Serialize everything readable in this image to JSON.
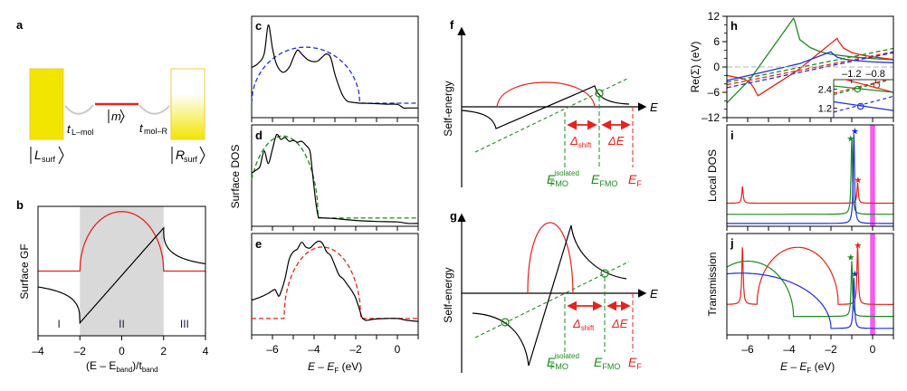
{
  "figure": {
    "panel_labels": [
      "a",
      "b",
      "c",
      "d",
      "e",
      "f",
      "g",
      "h",
      "i",
      "j"
    ]
  },
  "colors": {
    "black": "#000000",
    "red": "#e8221c",
    "blue": "#1f2fe0",
    "green": "#1e8a1e",
    "magenta": "#f25cf0",
    "yellow": "#f2e500",
    "gray_band": "#d9d9d9"
  },
  "panel_a": {
    "label": "a",
    "left_state": "|L_surf⟩",
    "left_state_main": "L",
    "left_state_sub": "surf",
    "right_state_main": "R",
    "right_state_sub": "surf",
    "mol_state": "m",
    "hop_left_main": "t",
    "hop_left_sub": "L–mol",
    "hop_right_main": "t",
    "hop_right_sub": "mol–R"
  },
  "chart_data": [
    {
      "id": "b",
      "type": "line",
      "title": "b",
      "ylabel": "Surface GF",
      "xlabel_main": "(E – E",
      "xlabel_sub1": "band",
      "xlabel_mid": ")/t",
      "xlabel_sub2": "band",
      "xlim": [
        -4,
        4
      ],
      "ylim": [
        -1.5,
        1.5
      ],
      "xticks": [
        "-4",
        "-2",
        "0",
        "2",
        "4"
      ],
      "xtick_values": [
        -4,
        -2,
        0,
        2,
        4
      ],
      "shaded_region": [
        -2,
        2
      ],
      "region_labels": [
        {
          "x": -3,
          "text": "I"
        },
        {
          "x": 0,
          "text": "II"
        },
        {
          "x": 3,
          "text": "III"
        }
      ],
      "series": [
        {
          "name": "Im (red)",
          "color": "red",
          "kind": "semicircle",
          "description": "-Im g = sqrt(4-x^2)/2 inside band, 0 outside"
        },
        {
          "name": "Re (black)",
          "color": "black",
          "kind": "re-surface-gf",
          "description": "x/2 inside band; (x ∓ sqrt(x^2-4))/2 outside"
        }
      ]
    },
    {
      "id": "c",
      "type": "line",
      "title": "c",
      "xlim": [
        -7,
        1
      ],
      "xtick_values": [
        -6,
        -4,
        -2,
        0
      ],
      "series": [
        {
          "name": "DFT surface DOS",
          "color": "black",
          "style": "solid",
          "x": [
            -7,
            -6.7,
            -6.4,
            -6.2,
            -6.0,
            -5.8,
            -5.5,
            -5.2,
            -5.0,
            -4.8,
            -4.6,
            -4.3,
            -4.0,
            -3.8,
            -3.6,
            -3.4,
            -3.2,
            -3.0,
            -2.8,
            -2.6,
            -2.4,
            -2.2,
            -2.0,
            -1.8,
            -1.6,
            -1.4,
            -1.0,
            -0.5,
            0.0,
            0.3,
            0.5,
            1.0
          ],
          "y": [
            0.52,
            0.56,
            0.66,
            0.96,
            0.72,
            0.55,
            0.47,
            0.52,
            0.62,
            0.7,
            0.66,
            0.6,
            0.58,
            0.59,
            0.63,
            0.66,
            0.62,
            0.45,
            0.32,
            0.22,
            0.17,
            0.16,
            0.155,
            0.15,
            0.15,
            0.148,
            0.145,
            0.14,
            0.138,
            0.1,
            0.1,
            0.1
          ]
        },
        {
          "name": "model semicircle",
          "color": "blue",
          "style": "dashed",
          "center": -4.4,
          "halfwidth": 2.6,
          "height": 0.58,
          "baseline": 0.15
        }
      ]
    },
    {
      "id": "d",
      "type": "line",
      "title": "d",
      "ylabel": "Surface DOS",
      "xlim": [
        -7,
        1
      ],
      "xtick_values": [
        -6,
        -4,
        -2,
        0
      ],
      "series": [
        {
          "name": "DFT surface DOS",
          "color": "black",
          "style": "solid",
          "x": [
            -7,
            -6.8,
            -6.6,
            -6.4,
            -6.2,
            -6.0,
            -5.8,
            -5.6,
            -5.4,
            -5.2,
            -5.0,
            -4.8,
            -4.6,
            -4.4,
            -4.2,
            -4.1,
            -4.0,
            -3.9,
            -3.8,
            -3.7,
            -3.5,
            -3.0,
            -2.0,
            -1.0,
            0.0,
            0.5,
            1.0
          ],
          "y": [
            0.55,
            0.58,
            0.62,
            0.78,
            0.65,
            0.8,
            0.95,
            0.9,
            0.92,
            0.88,
            0.89,
            0.87,
            0.88,
            0.84,
            0.78,
            0.6,
            0.4,
            0.22,
            0.1,
            0.09,
            0.085,
            0.08,
            0.06,
            0.05,
            0.045,
            0.03,
            0.03
          ]
        },
        {
          "name": "model semicircle",
          "color": "green",
          "style": "dashed",
          "center": -5.5,
          "halfwidth": 1.7,
          "height": 0.85,
          "baseline": 0.085
        }
      ]
    },
    {
      "id": "e",
      "type": "line",
      "title": "e",
      "xlabel_main": "E – E",
      "xlabel_sub": "F",
      "xlabel_unit": " (eV)",
      "xlim": [
        -7,
        1
      ],
      "xticks": [
        "-6",
        "-4",
        "-2",
        "0"
      ],
      "xtick_values": [
        -6,
        -4,
        -2,
        0
      ],
      "series": [
        {
          "name": "DFT surface DOS",
          "color": "black",
          "style": "solid",
          "x": [
            -7,
            -6.6,
            -6.2,
            -5.9,
            -5.8,
            -5.7,
            -5.6,
            -5.4,
            -5.2,
            -5.0,
            -4.8,
            -4.6,
            -4.4,
            -4.2,
            -4.0,
            -3.8,
            -3.6,
            -3.4,
            -3.2,
            -3.0,
            -2.8,
            -2.6,
            -2.4,
            -2.2,
            -2.0,
            -1.8,
            -1.7,
            -1.6,
            -1.5,
            -1.2,
            -1.0,
            -0.5,
            0.0,
            0.5,
            1.0
          ],
          "y": [
            0.36,
            0.39,
            0.43,
            0.47,
            0.44,
            0.4,
            0.44,
            0.58,
            0.78,
            0.86,
            0.89,
            0.96,
            0.91,
            0.9,
            0.94,
            0.97,
            0.95,
            0.86,
            0.82,
            0.72,
            0.62,
            0.58,
            0.52,
            0.46,
            0.38,
            0.25,
            0.18,
            0.16,
            0.15,
            0.16,
            0.165,
            0.17,
            0.17,
            0.15,
            0.14
          ]
        },
        {
          "name": "model semicircle",
          "color": "red",
          "style": "dashed",
          "center": -3.6,
          "halfwidth": 1.85,
          "height": 0.74,
          "baseline": 0.17
        }
      ]
    },
    {
      "id": "f",
      "type": "line",
      "title": "f",
      "ylabel": "Self-energy",
      "xlabel": "E",
      "annotations": {
        "delta_shift_main": "Δ",
        "delta_shift_sub": "shift",
        "delta_E": "ΔE",
        "E_FMO_isolated_main": "E",
        "E_FMO_isolated_sup": "isolated",
        "E_FMO_isolated_sub": "FMO",
        "E_FMO_main": "E",
        "E_FMO_sub": "FMO",
        "E_F_main": "E",
        "E_F_sub": "F"
      },
      "series": [
        {
          "name": "Re Σ",
          "color": "black",
          "style": "solid"
        },
        {
          "name": "-Im Σ",
          "color": "red",
          "style": "solid"
        },
        {
          "name": "E - E_FMO^isolated line",
          "color": "green",
          "style": "dashed"
        },
        {
          "name": "solution marker",
          "color": "green",
          "kind": "circle"
        }
      ]
    },
    {
      "id": "g",
      "type": "line",
      "title": "g",
      "ylabel": "Self-energy",
      "xlabel": "E",
      "annotations": {
        "delta_shift_main": "Δ",
        "delta_shift_sub": "shift",
        "delta_E": "ΔE",
        "E_FMO_isolated_main": "E",
        "E_FMO_isolated_sup": "isolated",
        "E_FMO_isolated_sub": "FMO",
        "E_FMO_main": "E",
        "E_FMO_sub": "FMO",
        "E_F_main": "E",
        "E_F_sub": "F"
      },
      "series": [
        {
          "name": "Re Σ",
          "color": "black",
          "style": "solid"
        },
        {
          "name": "-Im Σ",
          "color": "red",
          "style": "solid"
        },
        {
          "name": "E - E_FMO^isolated line",
          "color": "green",
          "style": "dashed"
        },
        {
          "name": "solution markers",
          "color": "green",
          "kind": "circle",
          "count": 2
        }
      ]
    },
    {
      "id": "h",
      "type": "line",
      "title": "h",
      "ylabel": "Re(Σ) (eV)",
      "xlim": [
        -7,
        1
      ],
      "ylim": [
        -12,
        12
      ],
      "yticks": [
        "12",
        "6",
        "0",
        "-6",
        "-12"
      ],
      "ytick_values": [
        12,
        6,
        0,
        -6,
        -12
      ],
      "series": [
        {
          "name": "Re Σ green",
          "color": "green",
          "style": "solid",
          "x": [
            -7,
            -5.9,
            -3.8,
            -3.75,
            -3.5,
            -3.0,
            -2.5,
            -2.0,
            -1.0,
            0,
            1
          ],
          "y": [
            -8.5,
            -3.0,
            11.5,
            11.0,
            6.5,
            4.6,
            3.6,
            3.0,
            2.4,
            2.0,
            1.7
          ]
        },
        {
          "name": "Re Σ red",
          "color": "red",
          "style": "solid",
          "x": [
            -7,
            -6.2,
            -5.9,
            -5.7,
            -5.55,
            -5.5,
            -3.6,
            -1.7,
            -1.65,
            -1.4,
            -1.0,
            -0.5,
            0,
            1
          ],
          "y": [
            -2.0,
            -2.8,
            -3.6,
            -5.0,
            -6.5,
            -6.8,
            -0.8,
            6.8,
            6.2,
            4.5,
            3.4,
            2.8,
            2.4,
            1.8
          ]
        },
        {
          "name": "Re Σ blue",
          "color": "blue",
          "style": "solid",
          "x": [
            -7,
            -5.5,
            -3.5,
            -2.0,
            -1.95,
            -1.7,
            -1.3,
            -0.8,
            0,
            1
          ],
          "y": [
            -3.2,
            -1.5,
            0.8,
            3.6,
            3.3,
            2.3,
            1.8,
            1.5,
            1.2,
            1.0
          ]
        },
        {
          "name": "E - E_FMO green",
          "color": "green",
          "style": "dashed",
          "x": [
            -7,
            1
          ],
          "y": [
            -3.6,
            4.4
          ]
        },
        {
          "name": "E - E_FMO red",
          "color": "red",
          "style": "dashed",
          "x": [
            -7,
            1
          ],
          "y": [
            -4.2,
            3.6
          ]
        },
        {
          "name": "E - E_FMO blue",
          "color": "blue",
          "style": "dashed",
          "x": [
            -7,
            1
          ],
          "y": [
            -4.9,
            3.4
          ]
        },
        {
          "name": "zero line",
          "color": "gray",
          "style": "dashed",
          "x": [
            -7,
            1
          ],
          "y": [
            0,
            0
          ]
        }
      ],
      "inset": {
        "xlim": [
          -1.5,
          -0.5
        ],
        "ylim": [
          0.6,
          3.0
        ],
        "xticks": [
          "-1.2",
          "-0.8"
        ],
        "xtick_values": [
          -1.2,
          -0.8
        ],
        "yticks": [
          "2.4",
          "1.2"
        ],
        "ytick_values": [
          2.4,
          1.2
        ],
        "series": [
          {
            "color": "red",
            "style": "solid",
            "x": [
              -1.5,
              -0.5
            ],
            "y": [
              3.2,
              2.2
            ]
          },
          {
            "color": "green",
            "style": "solid",
            "x": [
              -1.5,
              -0.5
            ],
            "y": [
              2.6,
              2.2
            ]
          },
          {
            "color": "blue",
            "style": "solid",
            "x": [
              -1.5,
              -0.5
            ],
            "y": [
              1.6,
              1.05
            ]
          },
          {
            "color": "red",
            "style": "dashed",
            "x": [
              -1.5,
              -0.5
            ],
            "y": [
              2.15,
              3.1
            ]
          },
          {
            "color": "green",
            "style": "dashed",
            "x": [
              -1.5,
              -0.5
            ],
            "y": [
              2.05,
              3.05
            ]
          },
          {
            "color": "blue",
            "style": "dashed",
            "x": [
              -1.5,
              -0.5
            ],
            "y": [
              0.95,
              1.95
            ]
          }
        ],
        "markers": [
          {
            "color": "green",
            "x": -1.1,
            "y": 2.4
          },
          {
            "color": "red",
            "x": -0.78,
            "y": 2.65
          },
          {
            "color": "blue",
            "x": -1.05,
            "y": 1.32
          }
        ]
      }
    },
    {
      "id": "i",
      "type": "line",
      "title": "i",
      "ylabel": "Local DOS",
      "xlim": [
        -7,
        1
      ],
      "xtick_values": [
        -6,
        -4,
        -2,
        0
      ],
      "highlight_band": [
        -0.12,
        0.12
      ],
      "series": [
        {
          "name": "red",
          "color": "red",
          "baseline": 0.25,
          "peaks": [
            {
              "x": -6.25,
              "h": 0.18
            },
            {
              "x": -0.72,
              "h": 0.22
            }
          ]
        },
        {
          "name": "green",
          "color": "green",
          "baseline": 0.13,
          "peaks": [
            {
              "x": -1.0,
              "h": 0.82
            }
          ]
        },
        {
          "name": "blue",
          "color": "blue",
          "baseline": 0.03,
          "peaks": [
            {
              "x": -0.9,
              "h": 0.97
            }
          ]
        }
      ],
      "star_markers": [
        {
          "color": "green",
          "x": -1.05,
          "y": 0.95
        },
        {
          "color": "blue",
          "x": -0.85,
          "y": 1.03
        },
        {
          "color": "red",
          "x": -0.7,
          "y": 0.5
        }
      ]
    },
    {
      "id": "j",
      "type": "line",
      "title": "j",
      "ylabel": "Transmission",
      "xlabel_main": "E – E",
      "xlabel_sub": "F",
      "xlabel_unit": " (eV)",
      "xlim": [
        -7,
        1
      ],
      "xticks": [
        "-6",
        "-4",
        "-2",
        "0"
      ],
      "xtick_values": [
        -6,
        -4,
        -2,
        0
      ],
      "highlight_band": [
        -0.12,
        0.12
      ],
      "series": [
        {
          "name": "red",
          "color": "red",
          "baseline": 0.33,
          "dome": {
            "center": -3.6,
            "halfwidth": 1.95,
            "height": 0.62
          },
          "peaks": [
            {
              "x": -6.25,
              "h": 0.62
            },
            {
              "x": -0.72,
              "h": 0.62
            }
          ]
        },
        {
          "name": "green",
          "color": "green",
          "baseline": 0.2,
          "dome": {
            "center": -6.0,
            "halfwidth": 2.2,
            "height": 0.6
          },
          "peaks": [
            {
              "x": -1.0,
              "h": 0.6
            }
          ]
        },
        {
          "name": "blue",
          "color": "blue",
          "baseline": 0.07,
          "dome": {
            "center": -6.3,
            "halfwidth": 4.3,
            "height": 0.6
          },
          "peaks": [
            {
              "x": -0.9,
              "h": 0.55
            }
          ]
        }
      ],
      "star_markers": [
        {
          "color": "green",
          "x": -1.05,
          "y": 0.84
        },
        {
          "color": "blue",
          "x": -0.85,
          "y": 0.66
        },
        {
          "color": "red",
          "x": -0.7,
          "y": 0.97
        }
      ]
    }
  ]
}
